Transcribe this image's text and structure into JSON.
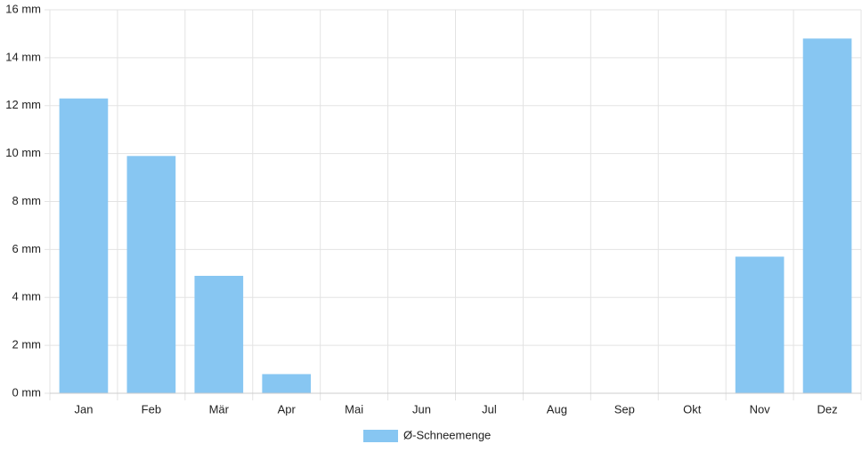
{
  "chart_data": {
    "type": "bar",
    "categories": [
      "Jan",
      "Feb",
      "Mär",
      "Apr",
      "Mai",
      "Jun",
      "Jul",
      "Aug",
      "Sep",
      "Okt",
      "Nov",
      "Dez"
    ],
    "series": [
      {
        "name": "Ø-Schneemenge",
        "color": "#87c6f2",
        "values": [
          12.3,
          9.9,
          4.9,
          0.8,
          0,
          0,
          0,
          0,
          0,
          0,
          5.7,
          14.8
        ]
      }
    ],
    "ylim": [
      0,
      16
    ],
    "yticks": [
      {
        "value": 0,
        "label": "0 mm"
      },
      {
        "value": 2,
        "label": "2 mm"
      },
      {
        "value": 4,
        "label": "4 mm"
      },
      {
        "value": 6,
        "label": "6 mm"
      },
      {
        "value": 8,
        "label": "8 mm"
      },
      {
        "value": 10,
        "label": "10 mm"
      },
      {
        "value": 12,
        "label": "12 mm"
      },
      {
        "value": 14,
        "label": "14 mm"
      },
      {
        "value": 16,
        "label": "16 mm"
      }
    ],
    "grid": true,
    "legend": "bottom"
  }
}
